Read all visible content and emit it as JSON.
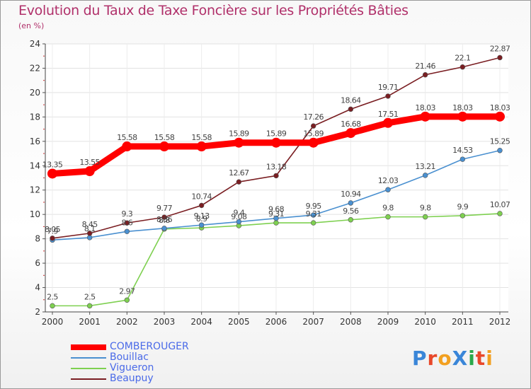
{
  "title": "Evolution du Taux de Taxe Foncière sur les Propriétés Bâties",
  "unit_label": "(en %)",
  "logo_text": "ProXiti",
  "chart_data": {
    "type": "line",
    "title": "Evolution du Taux de Taxe Foncière sur les Propriétés Bâties",
    "ylabel": "(en %)",
    "xlabel": "",
    "ylim": [
      2,
      24
    ],
    "yticks": [
      2,
      4,
      6,
      8,
      10,
      12,
      14,
      16,
      18,
      20,
      22,
      24
    ],
    "x": [
      "2000",
      "2001",
      "2002",
      "2003",
      "2004",
      "2005",
      "2006",
      "2007",
      "2008",
      "2009",
      "2010",
      "2011",
      "2012"
    ],
    "grid": "horizontal",
    "legend_position": "bottom-left",
    "series": [
      {
        "name": "COMBEROUGER",
        "color": "#ff0000",
        "values": [
          13.35,
          13.55,
          15.58,
          15.58,
          15.58,
          15.89,
          15.89,
          15.89,
          16.68,
          17.51,
          18.03,
          18.03,
          18.03
        ],
        "labels": [
          "13.35",
          "13.55",
          "15.58",
          "15.58",
          "15.58",
          "15.89",
          "15.89",
          "15.89",
          "16.68",
          "17.51",
          "18.03",
          "18.03",
          "18.03"
        ]
      },
      {
        "name": "Bouillac",
        "color": "#4a90d0",
        "values": [
          7.9,
          8.1,
          8.6,
          8.86,
          9.13,
          9.4,
          9.68,
          9.95,
          10.94,
          12.03,
          13.21,
          14.53,
          15.25
        ],
        "labels": [
          "7.9",
          "8.1",
          "8.6",
          "8.86",
          "9.13",
          "9.4",
          "9.68",
          "9.95",
          "10.94",
          "12.03",
          "13.21",
          "14.53",
          "15.25"
        ]
      },
      {
        "name": "Vigueron",
        "color": "#7ed050",
        "values": [
          2.5,
          2.5,
          2.97,
          8.8,
          8.9,
          9.08,
          9.31,
          9.31,
          9.56,
          9.8,
          9.8,
          9.9,
          10.07
        ],
        "labels": [
          "2.5",
          "2.5",
          "2.97",
          "8.8",
          "8.9",
          "9.08",
          "9.31",
          "9.31",
          "9.56",
          "9.8",
          "9.8",
          "9.9",
          "10.07"
        ]
      },
      {
        "name": "Beaupuy",
        "color": "#7a1e22",
        "values": [
          8.05,
          8.45,
          9.3,
          9.77,
          10.74,
          12.67,
          13.18,
          17.26,
          18.64,
          19.71,
          21.46,
          22.1,
          22.87
        ],
        "labels": [
          "8.05",
          "8.45",
          "9.3",
          "9.77",
          "10.74",
          "12.67",
          "13.18",
          "17.26",
          "18.64",
          "19.71",
          "21.46",
          "22.1",
          "22.87"
        ]
      }
    ]
  }
}
